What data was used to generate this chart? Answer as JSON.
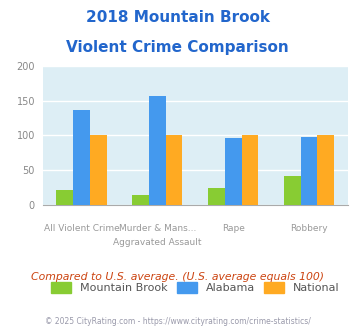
{
  "title_line1": "2018 Mountain Brook",
  "title_line2": "Violent Crime Comparison",
  "title_color": "#2266cc",
  "mountain_brook": [
    21,
    14,
    24,
    41
  ],
  "alabama": [
    136,
    157,
    96,
    97
  ],
  "national": [
    100,
    100,
    100,
    100
  ],
  "bar_colors": {
    "mountain_brook": "#88cc33",
    "alabama": "#4499ee",
    "national": "#ffaa22"
  },
  "ylim": [
    0,
    200
  ],
  "yticks": [
    0,
    50,
    100,
    150,
    200
  ],
  "plot_bg": "#ddeef5",
  "legend_labels": [
    "Mountain Brook",
    "Alabama",
    "National"
  ],
  "top_labels": [
    "",
    "Murder & Mans...",
    "",
    ""
  ],
  "bot_labels": [
    "All Violent Crime",
    "Aggravated Assault",
    "Rape",
    "Robbery"
  ],
  "footer_text": "Compared to U.S. average. (U.S. average equals 100)",
  "footer_color": "#cc4411",
  "copyright_text": "© 2025 CityRating.com - https://www.cityrating.com/crime-statistics/",
  "copyright_color": "#9999aa"
}
